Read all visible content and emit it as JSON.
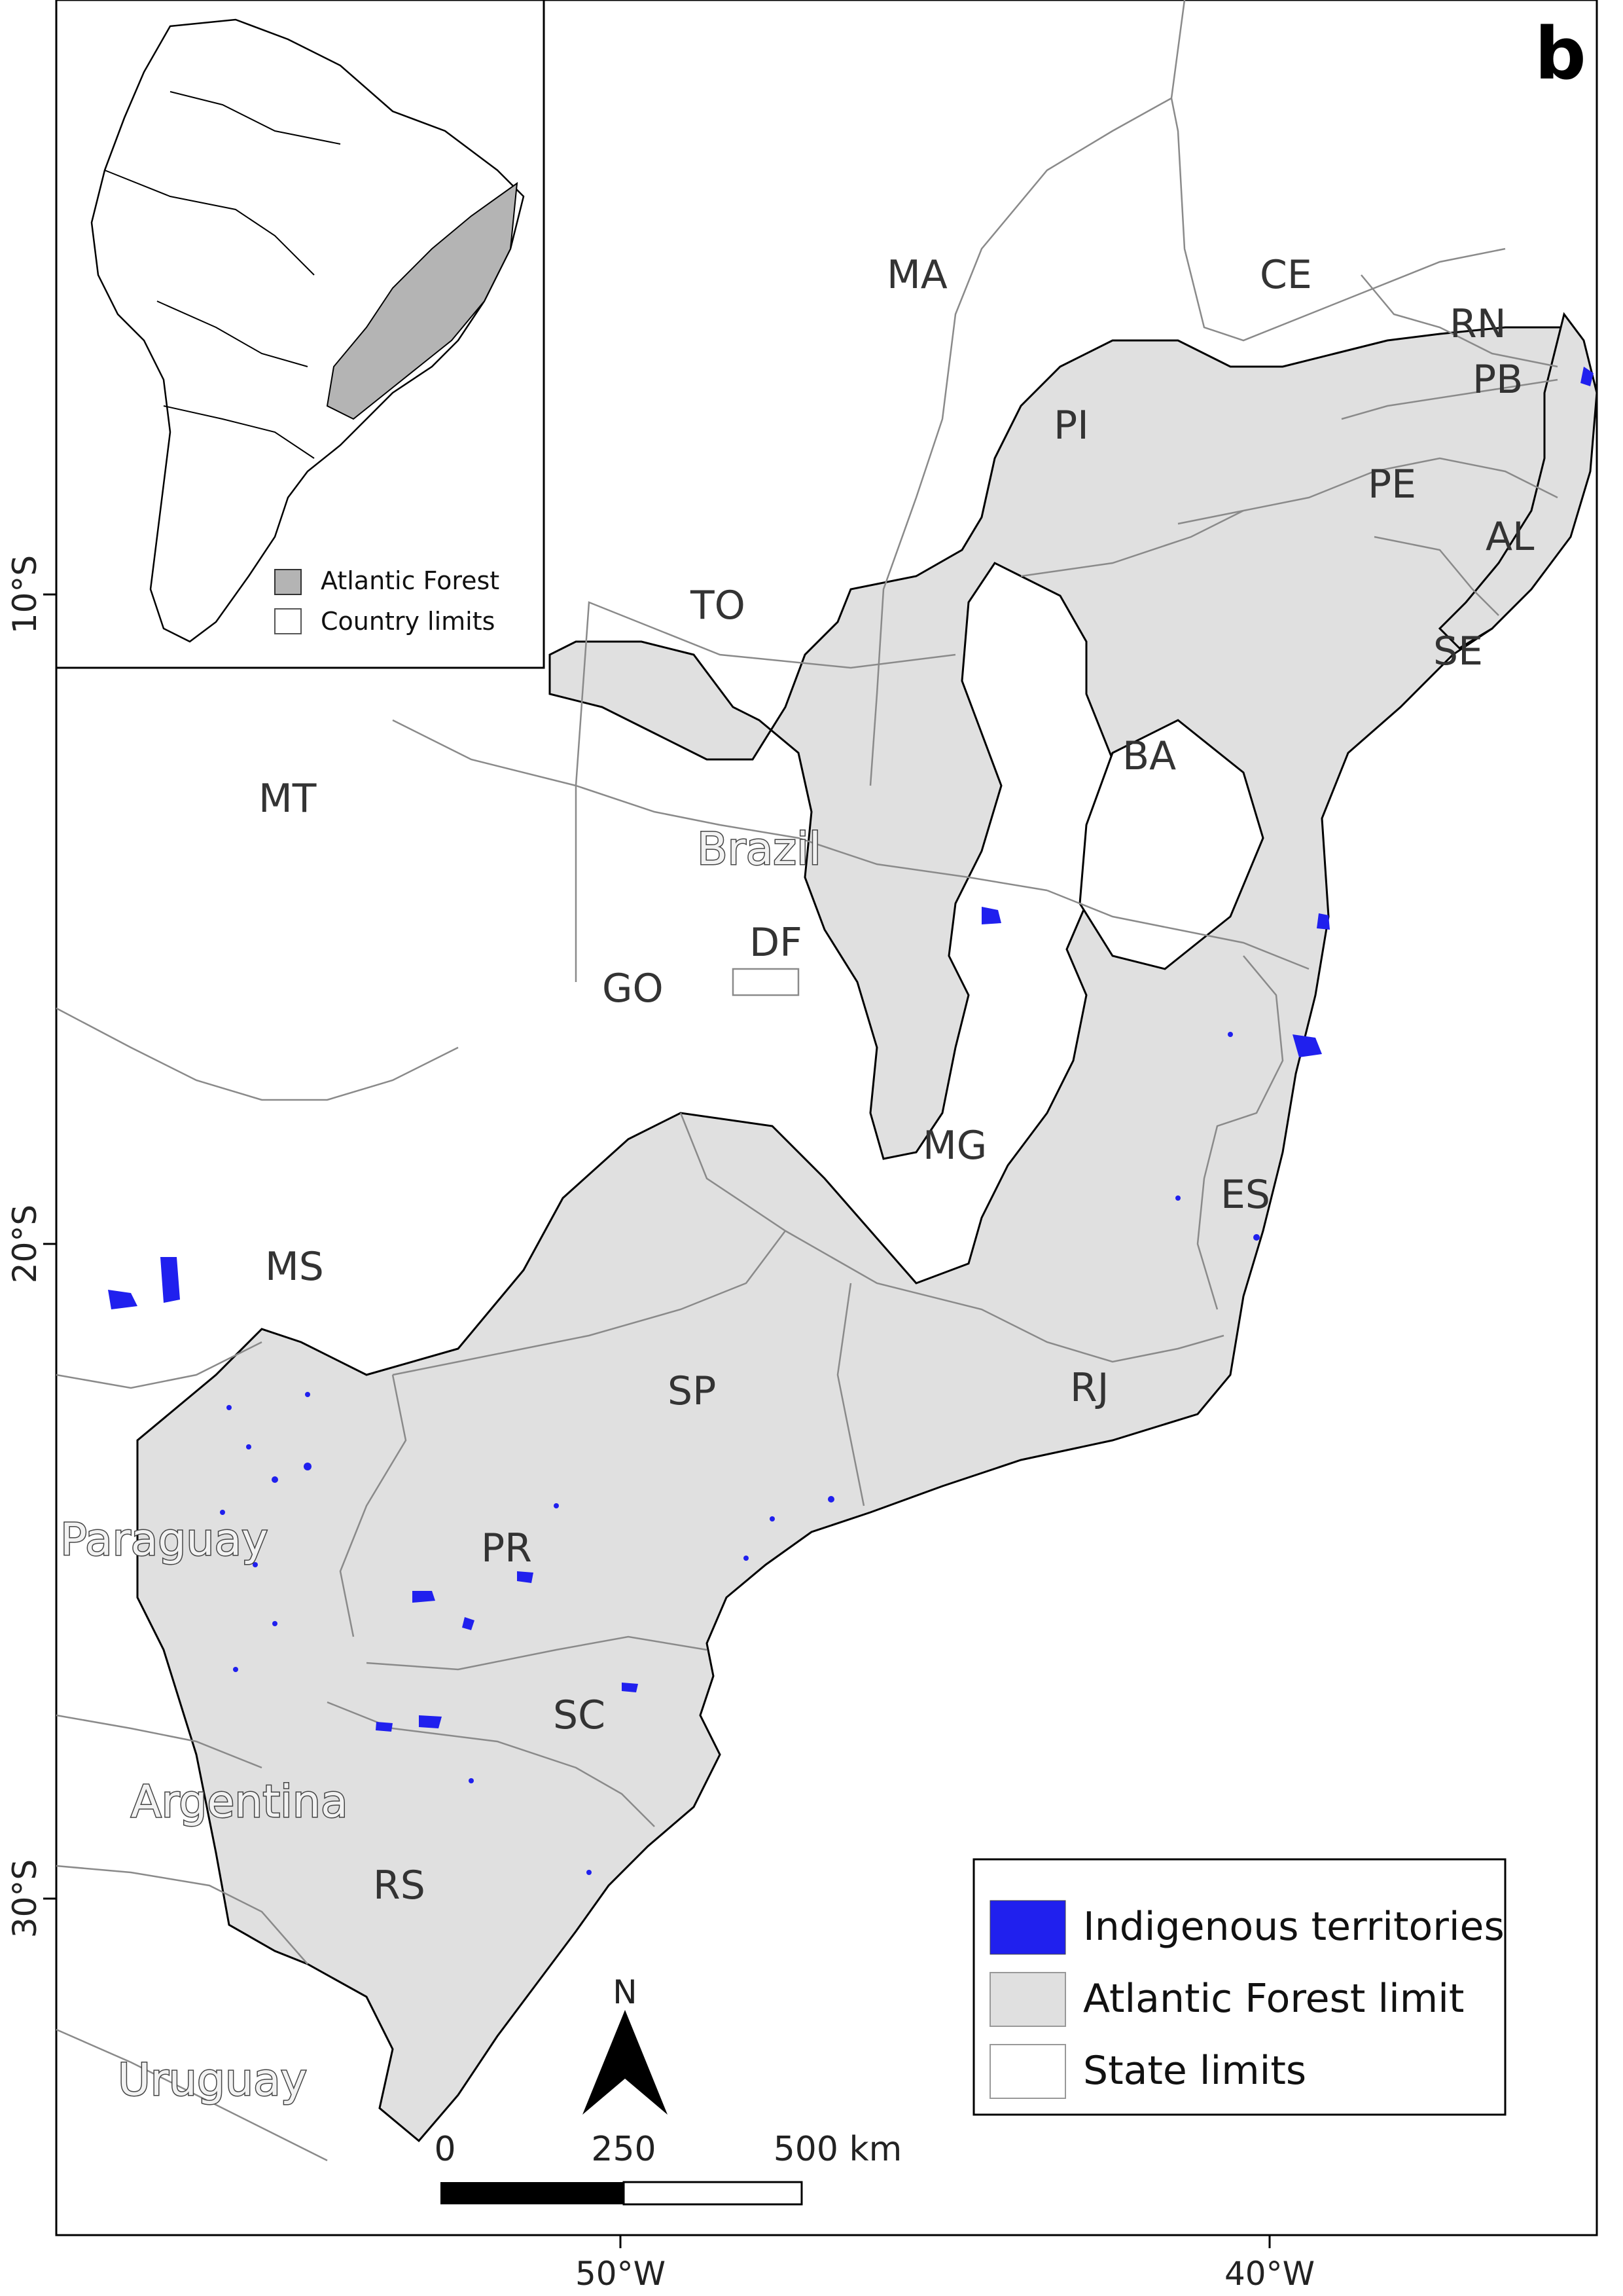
{
  "panel_label": "b",
  "colors": {
    "atlantic_forest": "#e0e0e0",
    "inset_forest": "#b4b4b4",
    "indigenous": "#2020ee",
    "state_line": "#8a8a8a",
    "coast_line": "#000000"
  },
  "inset_legend": {
    "items": [
      {
        "label": "Atlantic Forest",
        "swatch": "#b4b4b4"
      },
      {
        "label": "Country limits",
        "swatch": "#ffffff"
      }
    ]
  },
  "legend": {
    "items": [
      {
        "label": "Indigenous territories",
        "swatch": "#2020ee"
      },
      {
        "label": "Atlantic Forest limit",
        "swatch": "#e0e0e0"
      },
      {
        "label": "State limits",
        "swatch": "#ffffff"
      }
    ]
  },
  "states": [
    "MA",
    "CE",
    "RN",
    "PB",
    "PI",
    "PE",
    "AL",
    "TO",
    "SE",
    "BA",
    "MT",
    "GO",
    "DF",
    "MG",
    "ES",
    "MS",
    "SP",
    "RJ",
    "PR",
    "SC",
    "RS"
  ],
  "countries": [
    "Brazil",
    "Paraguay",
    "Argentina",
    "Uruguay"
  ],
  "lat_ticks": [
    "10°S",
    "20°S",
    "30°S"
  ],
  "lon_ticks": [
    "50°W",
    "40°W"
  ],
  "north_arrow": "N",
  "scale_bar": {
    "ticks": [
      "0",
      "250",
      "500 km"
    ]
  }
}
